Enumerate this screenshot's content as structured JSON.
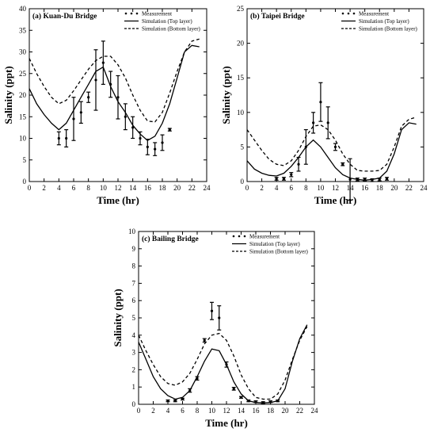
{
  "chart_data": [
    {
      "type": "line",
      "title": "(a) Kuan-Du Bridge",
      "xlabel": "Time (hr)",
      "ylabel": "Salinity (ppt)",
      "xlim": [
        0,
        24
      ],
      "ylim": [
        0,
        40
      ],
      "xticks": [
        0,
        2,
        4,
        6,
        8,
        10,
        12,
        14,
        16,
        18,
        20,
        22,
        24
      ],
      "yticks": [
        0,
        5,
        10,
        15,
        20,
        25,
        30,
        35,
        40
      ],
      "legend": [
        "Measurement",
        "Simulation (Top layer)",
        "Simulation (Bottom layer)"
      ],
      "legend_position": "top-right",
      "series": [
        {
          "name": "Simulation (Top layer)",
          "style": "solid",
          "x": [
            0,
            1,
            2,
            3,
            4,
            5,
            6,
            7,
            8,
            9,
            9.5,
            10,
            11,
            12,
            13,
            14,
            15,
            16,
            17,
            18,
            19,
            20,
            21,
            22,
            23
          ],
          "y": [
            21.5,
            18,
            15.5,
            13.5,
            12,
            13.5,
            16.5,
            19.5,
            22.5,
            25.5,
            26,
            26.5,
            22,
            18.5,
            16,
            13,
            11,
            9.5,
            10.5,
            13.5,
            18,
            24,
            30,
            31.5,
            31.2
          ]
        },
        {
          "name": "Simulation (Bottom layer)",
          "style": "dashed",
          "x": [
            0,
            1,
            2,
            3,
            4,
            5,
            6,
            7,
            8,
            9,
            10,
            11,
            12,
            13,
            14,
            15,
            16,
            17,
            18,
            19,
            20,
            21,
            22,
            23
          ],
          "y": [
            28.5,
            25,
            22,
            19.5,
            18,
            18.8,
            21,
            23.5,
            26,
            28,
            29,
            29,
            27,
            24,
            20,
            16.5,
            14,
            13.8,
            16,
            20.5,
            25.5,
            30,
            32.5,
            33
          ]
        },
        {
          "name": "Measurement",
          "style": "errorbar",
          "x": [
            4,
            5,
            6,
            7,
            8,
            9,
            10,
            11,
            12,
            13,
            14,
            15,
            16,
            17,
            18,
            19
          ],
          "y": [
            10,
            10,
            14.5,
            16,
            19.5,
            23.5,
            27.5,
            22.5,
            19.5,
            15,
            12.5,
            10,
            8,
            7.5,
            9,
            12
          ],
          "err": [
            1.5,
            2,
            5,
            2.5,
            1.2,
            7,
            5,
            3,
            5,
            3,
            2.5,
            1.5,
            1.8,
            1.5,
            1.8,
            0.3
          ]
        }
      ]
    },
    {
      "type": "line",
      "title": "(b) Taipei Bridge",
      "xlabel": "Time (hr)",
      "ylabel": "Salinity (ppt)",
      "xlim": [
        0,
        24
      ],
      "ylim": [
        0,
        25
      ],
      "xticks": [
        0,
        2,
        4,
        6,
        8,
        10,
        12,
        14,
        16,
        18,
        20,
        22,
        24
      ],
      "yticks": [
        0,
        5,
        10,
        15,
        20,
        25
      ],
      "legend": [
        "Measurement",
        "Simulation (Top layer)",
        "Simulation (Bottom layer)"
      ],
      "legend_position": "top-right",
      "series": [
        {
          "name": "Simulation (Top layer)",
          "style": "solid",
          "x": [
            0,
            1,
            2,
            3,
            4,
            5,
            6,
            7,
            8,
            9,
            10,
            11,
            12,
            13,
            14,
            15,
            16,
            17,
            18,
            19,
            20,
            21,
            22,
            23
          ],
          "y": [
            3,
            1.8,
            1.2,
            0.9,
            0.8,
            1.2,
            2.2,
            3.5,
            5,
            6,
            5,
            3.5,
            2,
            1,
            0.5,
            0.3,
            0.2,
            0.3,
            0.5,
            1.5,
            4,
            7.5,
            8.5,
            8.3
          ]
        },
        {
          "name": "Simulation (Bottom layer)",
          "style": "dashed",
          "x": [
            0,
            1,
            2,
            3,
            4,
            5,
            6,
            7,
            8,
            9,
            10,
            11,
            12,
            13,
            14,
            15,
            16,
            17,
            18,
            19,
            20,
            21,
            22,
            23
          ],
          "y": [
            7.5,
            6,
            4.5,
            3.2,
            2.5,
            2.3,
            3,
            4.5,
            6.5,
            8,
            8.2,
            7.5,
            6,
            4,
            2.5,
            1.6,
            1.5,
            1.5,
            1.6,
            2.5,
            5,
            8,
            9,
            9.3
          ]
        },
        {
          "name": "Measurement",
          "style": "errorbar",
          "x": [
            4,
            5,
            6,
            7,
            8,
            9,
            10,
            11,
            12,
            13,
            14,
            15,
            16,
            17,
            18,
            19
          ],
          "y": [
            0.4,
            0.4,
            1,
            2.5,
            5,
            8.5,
            11.5,
            8.5,
            5,
            2.5,
            0.3,
            0.3,
            0.3,
            0.2,
            0.3,
            0.4
          ],
          "err": [
            0.2,
            0.2,
            0.3,
            1,
            2.5,
            1.5,
            2.8,
            2.3,
            0.5,
            0.2,
            3,
            0.2,
            0.2,
            0.2,
            0.2,
            0.2
          ]
        }
      ]
    },
    {
      "type": "line",
      "title": "(c) Bailing Bridge",
      "xlabel": "Time (hr)",
      "ylabel": "Salinity (ppt)",
      "xlim": [
        0,
        24
      ],
      "ylim": [
        0,
        10
      ],
      "xticks": [
        0,
        2,
        4,
        6,
        8,
        10,
        12,
        14,
        16,
        18,
        20,
        22,
        24
      ],
      "yticks": [
        0,
        1,
        2,
        3,
        4,
        5,
        6,
        7,
        8,
        9,
        10
      ],
      "legend": [
        "Measurement",
        "Simulation (Top layer)",
        "Simulation (Bottom layer)"
      ],
      "legend_position": "top-right",
      "series": [
        {
          "name": "Simulation (Top layer)",
          "style": "solid",
          "x": [
            0,
            1,
            2,
            3,
            4,
            5,
            6,
            7,
            8,
            9,
            10,
            11,
            12,
            13,
            14,
            15,
            16,
            17,
            18,
            19,
            20,
            21,
            22,
            23
          ],
          "y": [
            3.6,
            2.6,
            1.6,
            0.9,
            0.5,
            0.3,
            0.4,
            0.8,
            1.6,
            2.5,
            3.2,
            3.1,
            2.3,
            1.3,
            0.6,
            0.2,
            0.1,
            0.08,
            0.1,
            0.2,
            0.9,
            2.5,
            3.8,
            4.6
          ]
        },
        {
          "name": "Simulation (Bottom layer)",
          "style": "dashed",
          "x": [
            0,
            1,
            2,
            3,
            4,
            5,
            6,
            7,
            8,
            9,
            10,
            11,
            12,
            13,
            14,
            15,
            16,
            17,
            18,
            19,
            20,
            21,
            22,
            23
          ],
          "y": [
            4,
            3.1,
            2.3,
            1.6,
            1.2,
            1.1,
            1.3,
            1.8,
            2.6,
            3.5,
            4,
            4.1,
            3.7,
            2.8,
            1.7,
            0.9,
            0.4,
            0.3,
            0.3,
            0.6,
            1.4,
            2.6,
            3.7,
            4.5
          ]
        },
        {
          "name": "Measurement",
          "style": "errorbar",
          "x": [
            4,
            5,
            6,
            7,
            8,
            9,
            10,
            11,
            12,
            13,
            14,
            15,
            16,
            17,
            18,
            19
          ],
          "y": [
            0.2,
            0.2,
            0.3,
            0.8,
            1.5,
            3.7,
            5.4,
            5,
            2.3,
            0.9,
            0.4,
            0.2,
            0.15,
            0.1,
            0.15,
            0.2
          ],
          "err": [
            0.05,
            0.05,
            0.05,
            0.1,
            0.1,
            0.1,
            0.5,
            0.7,
            0.15,
            0.08,
            0.05,
            0.05,
            0.05,
            0.05,
            0.05,
            0.05
          ]
        }
      ]
    }
  ]
}
